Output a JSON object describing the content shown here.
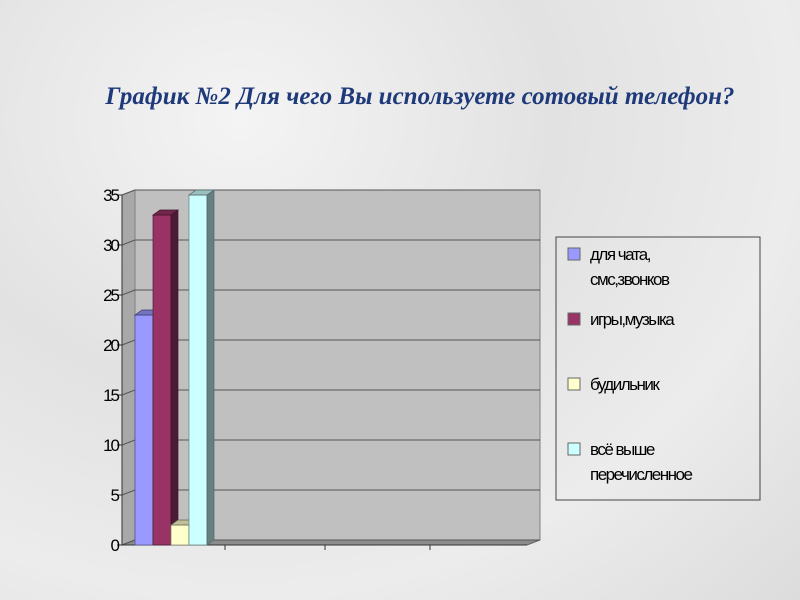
{
  "title": "График №2  Для чего Вы используете сотовый телефон?",
  "chart_data": {
    "type": "bar",
    "title": "График №2  Для чего Вы используете сотовый телефон?",
    "categories": [
      ""
    ],
    "series": [
      {
        "name": "для чата, смс,звонков",
        "values": [
          23
        ],
        "color": "#9999ff"
      },
      {
        "name": "игры,музыка",
        "values": [
          33
        ],
        "color": "#993366"
      },
      {
        "name": "будильник",
        "values": [
          2
        ],
        "color": "#ffffcc"
      },
      {
        "name": "всё выше перечисленное",
        "values": [
          35
        ],
        "color": "#ccffff"
      }
    ],
    "ylim": [
      0,
      35
    ],
    "yticks": [
      "0",
      "5",
      "10",
      "15",
      "20",
      "25",
      "30",
      "35"
    ],
    "grid": true,
    "legend": "right",
    "style": "3d-column"
  }
}
